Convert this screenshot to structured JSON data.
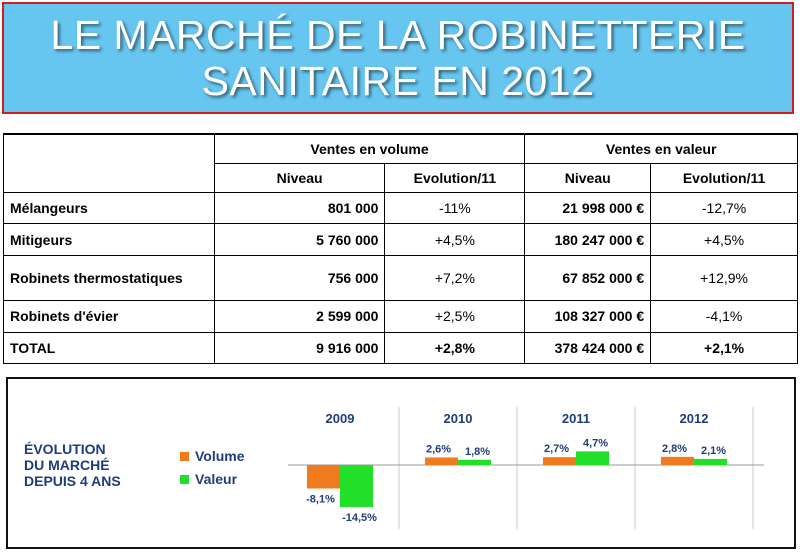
{
  "banner": {
    "line1": "LE MARCHÉ DE LA ROBINETTERIE",
    "line2": "SANITAIRE EN 2012"
  },
  "table": {
    "group_headers": [
      "Ventes en volume",
      "Ventes en valeur"
    ],
    "sub_headers": [
      "Niveau",
      "Evolution/11",
      "Niveau",
      "Evolution/11"
    ],
    "rows": [
      {
        "label": "Mélangeurs",
        "vol_level": "801 000",
        "vol_evo": "-11%",
        "val_level": "21 998 000 €",
        "val_evo": "-12,7%"
      },
      {
        "label": "Mitigeurs",
        "vol_level": "5 760 000",
        "vol_evo": "+4,5%",
        "val_level": "180 247 000 €",
        "val_evo": "+4,5%"
      },
      {
        "label": "Robinets thermostatiques",
        "vol_level": "756 000",
        "vol_evo": "+7,2%",
        "val_level": "67 852 000 €",
        "val_evo": "+12,9%"
      },
      {
        "label": "Robinets d'évier",
        "vol_level": "2 599 000",
        "vol_evo": "+2,5%",
        "val_level": "108 327 000 €",
        "val_evo": "-4,1%"
      }
    ],
    "total": {
      "label": "TOTAL",
      "vol_level": "9 916 000",
      "vol_evo": "+2,8%",
      "val_level": "378 424 000 €",
      "val_evo": "+2,1%"
    }
  },
  "chart_data": {
    "type": "bar",
    "title_lines": [
      "ÉVOLUTION",
      "DU MARCHÉ",
      "DEPUIS 4 ANS"
    ],
    "categories": [
      "2009",
      "2010",
      "2011",
      "2012"
    ],
    "series": [
      {
        "name": "Volume",
        "color": "#f07a1e",
        "values": [
          -8.1,
          2.6,
          2.7,
          2.8
        ],
        "labels": [
          "-8,1%",
          "2,6%",
          "2,7%",
          "2,8%"
        ]
      },
      {
        "name": "Valeur",
        "color": "#22e02a",
        "values": [
          -14.5,
          1.8,
          4.7,
          2.1
        ],
        "labels": [
          "-14,5%",
          "1,8%",
          "4,7%",
          "2,1%"
        ]
      }
    ],
    "grid": false,
    "legend_position": "left"
  }
}
